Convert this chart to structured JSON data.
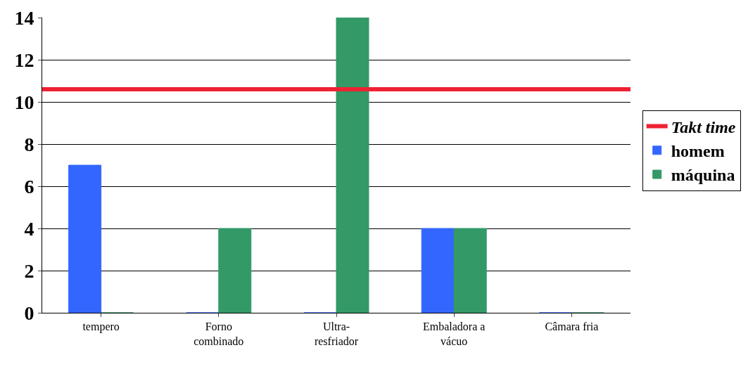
{
  "chart_data": {
    "type": "bar",
    "categories": [
      "tempero",
      "Forno\ncombinado",
      "Ultra-\nresfriador",
      "Embaladora a\nvácuo",
      "Câmara fria"
    ],
    "series": [
      {
        "name": "homem",
        "color": "#3366ff",
        "values": [
          7,
          0,
          0,
          4,
          0
        ]
      },
      {
        "name": "máquina",
        "color": "#339966",
        "values": [
          0,
          4,
          14,
          4,
          0
        ]
      }
    ],
    "ylim": [
      0,
      14
    ],
    "yticks": [
      0,
      2,
      4,
      6,
      8,
      10,
      12,
      14
    ],
    "grid": "y",
    "legend": "right",
    "ref_lines": [
      {
        "axis": "y",
        "value": 10.6,
        "label": "Takt time",
        "color": "#ee2233"
      }
    ]
  }
}
